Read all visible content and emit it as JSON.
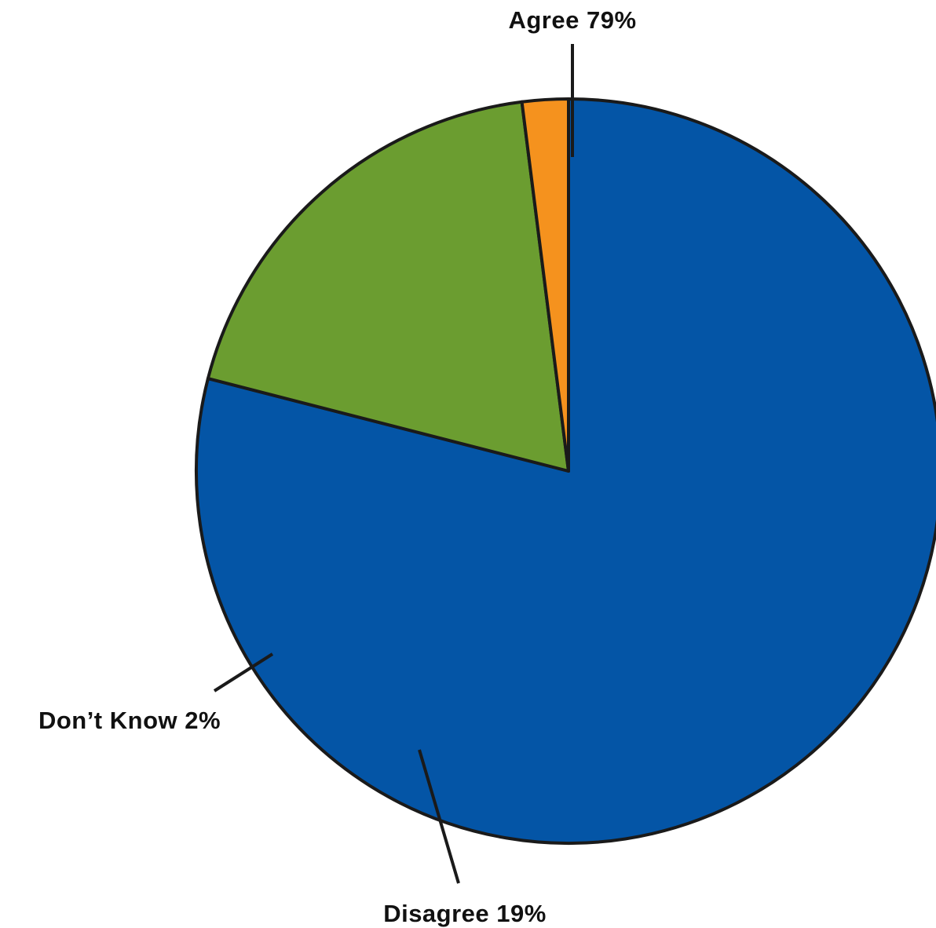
{
  "chart_data": {
    "type": "pie",
    "title": "",
    "slices": [
      {
        "label": "Agree",
        "value": 79,
        "display": "Agree 79%",
        "color": "#0455a6"
      },
      {
        "label": "Disagree",
        "value": 19,
        "display": "Disagree 19%",
        "color": "#6b9d30"
      },
      {
        "label": "Don't Know",
        "value": 2,
        "display": "Don’t Know 2%",
        "color": "#f5921e"
      }
    ]
  }
}
